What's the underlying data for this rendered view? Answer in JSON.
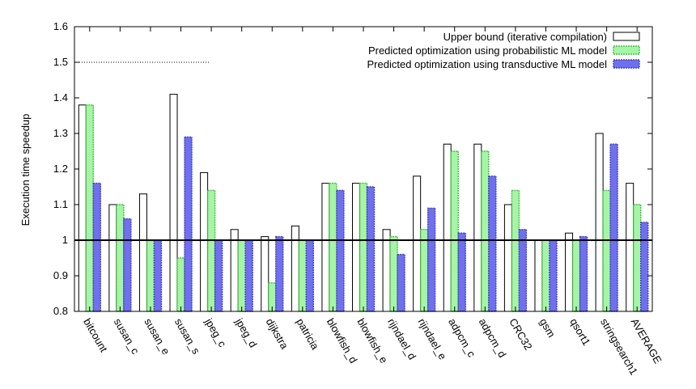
{
  "chart_data": {
    "type": "bar",
    "title": "",
    "xlabel": "",
    "ylabel": "Execution time speedup",
    "ylim": [
      0.8,
      1.6
    ],
    "yticks": [
      0.8,
      0.9,
      1,
      1.1,
      1.2,
      1.3,
      1.4,
      1.5,
      1.6
    ],
    "reference_line": 1,
    "legend_position": "top-right",
    "grid": false,
    "categories": [
      "bitcount",
      "susan_c",
      "susan_e",
      "susan_s",
      "jpeg_c",
      "jpeg_d",
      "dijkstra",
      "patricia",
      "blowfish_d",
      "blowfish_e",
      "rijndael_d",
      "rijndael_e",
      "adpcm_c",
      "adpcm_d",
      "CRC32",
      "gsm",
      "qsort1",
      "stringsearch1",
      "AVERAGE"
    ],
    "series": [
      {
        "name": "Upper bound (iterative compilation)",
        "color": "#ffffff",
        "stroke": "#000000",
        "values": [
          1.38,
          1.1,
          1.13,
          1.41,
          1.19,
          1.03,
          1.01,
          1.04,
          1.16,
          1.16,
          1.03,
          1.18,
          1.27,
          1.27,
          1.1,
          1.0,
          1.02,
          1.3,
          1.16
        ]
      },
      {
        "name": "Predicted optimization using probabilistic ML model",
        "color": "#a6f5a6",
        "stroke": "#3fbf3f",
        "values": [
          1.38,
          1.1,
          1.0,
          0.95,
          1.14,
          1.0,
          0.88,
          1.0,
          1.16,
          1.16,
          1.01,
          1.03,
          1.25,
          1.25,
          1.14,
          1.0,
          1.0,
          1.14,
          1.1
        ]
      },
      {
        "name": "Predicted optimization using transductive ML model",
        "color": "#7070ee",
        "stroke": "#3f3fc0",
        "values": [
          1.16,
          1.06,
          1.0,
          1.29,
          1.0,
          1.0,
          1.01,
          1.0,
          1.14,
          1.15,
          0.96,
          1.09,
          1.02,
          1.18,
          1.03,
          1.0,
          1.01,
          1.27,
          1.05
        ]
      }
    ]
  }
}
